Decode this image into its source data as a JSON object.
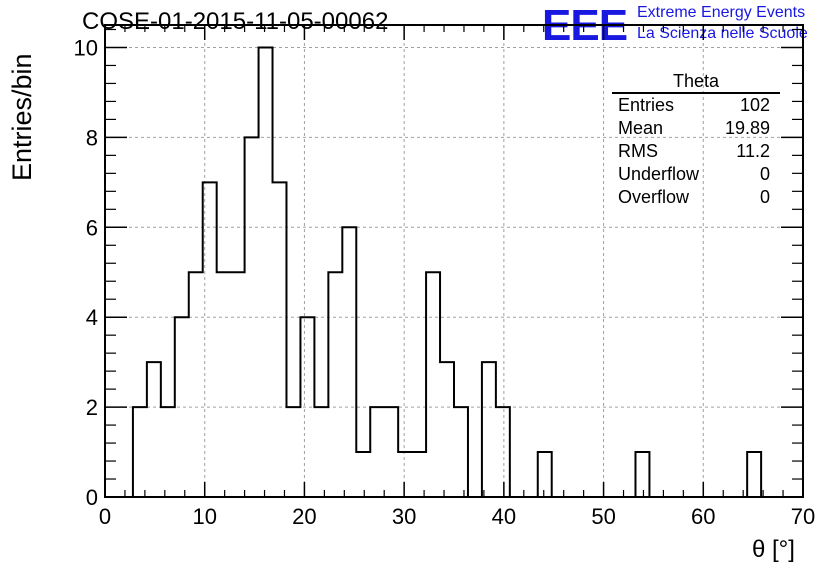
{
  "plot_title": "COSE-01-2015-11-05-00062",
  "logo": {
    "mark": "EEE",
    "line1": "Extreme Energy Events",
    "line2": "La Scienza nelle Scuole"
  },
  "stats": {
    "title": "Theta",
    "rows": [
      {
        "label": "Entries",
        "value": "102"
      },
      {
        "label": "Mean",
        "value": "19.89"
      },
      {
        "label": "RMS",
        "value": "11.2"
      },
      {
        "label": "Underflow",
        "value": "0"
      },
      {
        "label": "Overflow",
        "value": "0"
      }
    ]
  },
  "chart_data": {
    "type": "bar",
    "title": "COSE-01-2015-11-05-00062",
    "xlabel": "θ [°]",
    "ylabel": "Entries/bin",
    "xlim": [
      0,
      70
    ],
    "ylim": [
      0,
      10.5
    ],
    "bin_width": 1.4,
    "bins_from": 0,
    "counts": [
      0,
      0,
      2,
      3,
      2,
      4,
      5,
      7,
      5,
      5,
      8,
      10,
      7,
      2,
      4,
      2,
      5,
      6,
      1,
      2,
      2,
      1,
      1,
      5,
      3,
      2,
      0,
      3,
      2,
      0,
      0,
      1,
      0,
      0,
      0,
      0,
      0,
      0,
      1,
      0,
      0,
      0,
      0,
      0,
      0,
      0,
      1,
      0,
      0,
      0
    ],
    "xticks": [
      0,
      10,
      20,
      30,
      40,
      50,
      60,
      70
    ],
    "yticks": [
      0,
      2,
      4,
      6,
      8,
      10
    ],
    "grid": true,
    "legend": "stats box top-right",
    "line_color": "#000000"
  }
}
